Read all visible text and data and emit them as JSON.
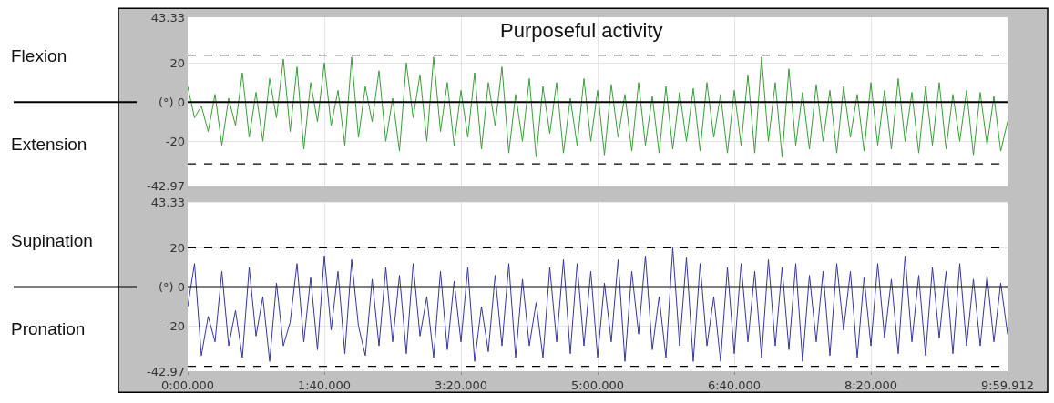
{
  "chart_data": [
    {
      "type": "line",
      "title": "Purposeful activity",
      "tick_labels": "y",
      "grid": true,
      "line_style": "solid",
      "annotations": [
        "Flexion",
        "Extension"
      ],
      "ylim": [
        -42.97,
        43.33
      ],
      "yticks": [
        -42.97,
        -20,
        {
          "value": 0,
          "label": "(°) 0"
        },
        20,
        43.33
      ],
      "ref_lines": [
        {
          "axis": "y",
          "value": 0,
          "label": null,
          "color": "#000000",
          "line_style": "solid"
        },
        {
          "axis": "y",
          "value": 24,
          "label": null,
          "color": "#000000",
          "line_style": "dashed"
        },
        {
          "axis": "y",
          "value": -31.5,
          "label": null,
          "color": "#000000",
          "line_style": "dashed"
        }
      ],
      "series": [
        {
          "color": "#168c16",
          "values": [
            8,
            -8,
            -2,
            -15,
            4,
            -22,
            2,
            -12,
            15,
            -18,
            5,
            -20,
            12,
            -8,
            22,
            -15,
            18,
            -24,
            10,
            -10,
            20,
            -12,
            6,
            -22,
            23,
            -18,
            8,
            -10,
            16,
            -20,
            2,
            -25,
            20,
            -8,
            14,
            -20,
            23,
            -15,
            10,
            -22,
            6,
            -18,
            15,
            -24,
            10,
            -12,
            18,
            -26,
            4,
            -20,
            12,
            -28,
            8,
            -16,
            10,
            -26,
            2,
            -22,
            12,
            -20,
            6,
            -27,
            9,
            -18,
            4,
            -25,
            10,
            -22,
            3,
            -26,
            8,
            -24,
            5,
            -20,
            7,
            -25,
            10,
            -18,
            4,
            -26,
            6,
            -22,
            14,
            -26,
            23,
            -20,
            10,
            -28,
            17,
            -22,
            5,
            -24,
            9,
            -20,
            6,
            -26,
            8,
            -18,
            4,
            -25,
            10,
            -22,
            6,
            -24,
            12,
            -20,
            5,
            -26,
            8,
            -22,
            10,
            -24,
            4,
            -20,
            6,
            -27,
            5,
            -22,
            3,
            -25,
            -10
          ]
        }
      ]
    },
    {
      "type": "line",
      "grid": true,
      "line_style": "solid",
      "annotations": [
        "Supination",
        "Pronation"
      ],
      "categories": [
        "0:00.000",
        null,
        null,
        null,
        null,
        null,
        null,
        null,
        null,
        null,
        null,
        null,
        null,
        null,
        null,
        null,
        null,
        null,
        null,
        null,
        "1:40.000",
        null,
        null,
        null,
        null,
        null,
        null,
        null,
        null,
        null,
        null,
        null,
        null,
        null,
        null,
        null,
        null,
        null,
        null,
        null,
        "3:20.000",
        null,
        null,
        null,
        null,
        null,
        null,
        null,
        null,
        null,
        null,
        null,
        null,
        null,
        null,
        null,
        null,
        null,
        null,
        null,
        "5:00.000",
        null,
        null,
        null,
        null,
        null,
        null,
        null,
        null,
        null,
        null,
        null,
        null,
        null,
        null,
        null,
        null,
        null,
        null,
        null,
        "6:40.000",
        null,
        null,
        null,
        null,
        null,
        null,
        null,
        null,
        null,
        null,
        null,
        null,
        null,
        null,
        null,
        null,
        null,
        null,
        null,
        "8:20.000",
        null,
        null,
        null,
        null,
        null,
        null,
        null,
        null,
        null,
        null,
        null,
        null,
        null,
        null,
        null,
        null,
        null,
        null,
        null,
        "9:59.912"
      ],
      "ylim": [
        -42.97,
        43.33
      ],
      "yticks": [
        -42.97,
        -20,
        {
          "value": 0,
          "label": "(°) 0"
        },
        20,
        43.33
      ],
      "ref_lines": [
        {
          "axis": "y",
          "value": 0,
          "label": null,
          "color": "#000000",
          "line_style": "solid"
        },
        {
          "axis": "y",
          "value": 20,
          "label": null,
          "color": "#000000",
          "line_style": "dashed"
        },
        {
          "axis": "y",
          "value": -40.5,
          "label": null,
          "color": "#000000",
          "line_style": "dashed"
        }
      ],
      "series": [
        {
          "color": "#12128a",
          "values": [
            -10,
            12,
            -35,
            -15,
            -28,
            8,
            -30,
            -12,
            -36,
            10,
            -25,
            -5,
            -38,
            2,
            -30,
            -18,
            12,
            -28,
            5,
            -32,
            16,
            -22,
            8,
            -34,
            14,
            -20,
            -35,
            4,
            -30,
            10,
            -28,
            6,
            -34,
            12,
            -25,
            -5,
            -36,
            8,
            -32,
            3,
            -28,
            10,
            -38,
            -10,
            -33,
            6,
            -30,
            12,
            -36,
            4,
            -30,
            -8,
            -36,
            10,
            -28,
            14,
            -34,
            12,
            -30,
            8,
            -36,
            2,
            -28,
            14,
            -38,
            8,
            -24,
            16,
            -32,
            -5,
            -36,
            20,
            -30,
            15,
            -38,
            12,
            -30,
            -5,
            -38,
            10,
            -34,
            12,
            -28,
            8,
            -36,
            14,
            -30,
            10,
            -32,
            12,
            -38,
            6,
            -28,
            8,
            -35,
            12,
            -22,
            8,
            -36,
            5,
            -30,
            12,
            -26,
            4,
            -34,
            16,
            -28,
            6,
            -35,
            10,
            -26,
            8,
            -34,
            12,
            -30,
            4,
            -30,
            6,
            -28,
            2,
            -24
          ]
        }
      ]
    }
  ]
}
